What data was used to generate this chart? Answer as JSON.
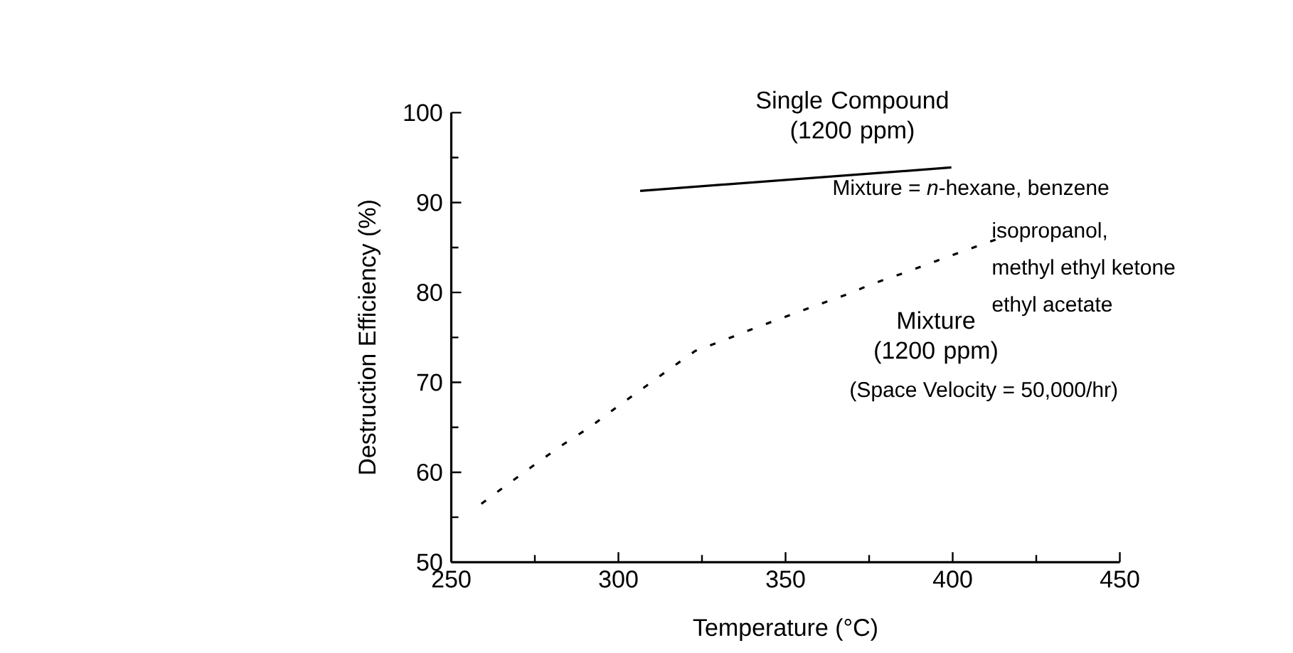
{
  "chart_data": {
    "type": "line",
    "xlabel": "Temperature (°C)",
    "ylabel": "Destruction Efficiency (%)",
    "xlim": [
      250,
      450
    ],
    "ylim": [
      50,
      100
    ],
    "xticks": [
      250,
      300,
      350,
      400,
      450
    ],
    "yticks": [
      50,
      60,
      70,
      80,
      90,
      100
    ],
    "grid": false,
    "legend": false,
    "marker": "none",
    "series": [
      {
        "name": "Single Compound (1200 ppm)",
        "color": "#000000",
        "line_style": "solid",
        "x": [
          306.5,
          399.6
        ],
        "values": [
          91.3,
          93.9
        ]
      },
      {
        "name": "Mixture (1200 ppm)",
        "color": "#000000",
        "line_style": "dashed",
        "x": [
          259,
          267,
          275.5,
          283.5,
          291.4,
          299.7,
          307.2,
          315,
          323,
          332.3,
          341.2,
          350.7,
          359.5,
          367.7,
          376.3,
          385.7,
          395.1,
          403.9,
          413.8
        ],
        "values": [
          56.5,
          58.7,
          61.0,
          63.1,
          65.0,
          67.3,
          69.3,
          71.4,
          73.5,
          74.8,
          76.1,
          77.4,
          78.6,
          79.7,
          81.0,
          82.2,
          83.5,
          84.7,
          86.0
        ]
      }
    ],
    "annotations": [
      "Mixture = *n*-hexane, benzene",
      "isopropanol,",
      "methyl ethyl ketone",
      "ethyl acetate",
      "(Space Velocity = 50,000/hr)"
    ]
  }
}
